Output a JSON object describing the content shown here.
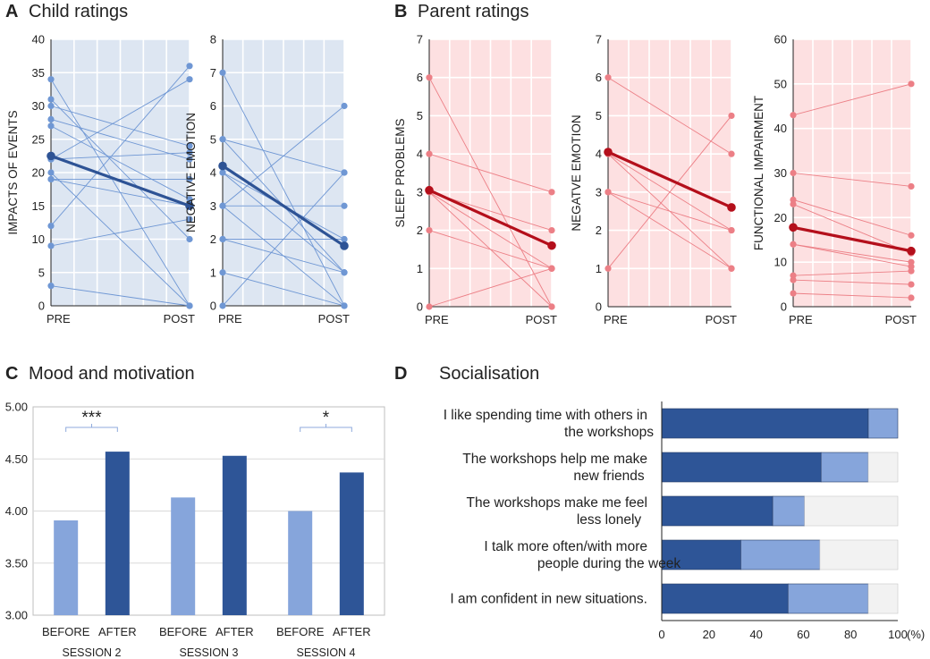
{
  "panels": {
    "A": {
      "letter": "A",
      "title": "Child ratings"
    },
    "B": {
      "letter": "B",
      "title": "Parent ratings"
    },
    "C": {
      "letter": "C",
      "title": "Mood and motivation"
    },
    "D": {
      "letter": "D",
      "title": "Socialisation"
    }
  },
  "colors": {
    "child_bg": "#dde6f2",
    "child_line": "#6f97d4",
    "child_mean": "#2e5395",
    "parent_bg": "#fde0e1",
    "parent_line": "#ec7f86",
    "parent_mean": "#b40f1b",
    "bar_before": "#86a5db",
    "bar_after": "#2e5597",
    "stack_dark": "#2e5597",
    "stack_light": "#86a5db",
    "stack_grey": "#f2f2f2",
    "sig": "#1f3864"
  },
  "chart_data": [
    {
      "id": "impacts",
      "type": "line",
      "panel": "A",
      "theme": "child",
      "ylabel": "IMPACTS OF EVENTS",
      "x": [
        "PRE",
        "POST"
      ],
      "ylim": [
        0,
        40
      ],
      "yticks": [
        0,
        5,
        10,
        15,
        20,
        25,
        30,
        35,
        40
      ],
      "individuals": [
        [
          34,
          0
        ],
        [
          31,
          10
        ],
        [
          30,
          24
        ],
        [
          28,
          22
        ],
        [
          27,
          16
        ],
        [
          22,
          34
        ],
        [
          22,
          23
        ],
        [
          20,
          0
        ],
        [
          19,
          19
        ],
        [
          19,
          15
        ],
        [
          12,
          36
        ],
        [
          9,
          13
        ],
        [
          3,
          0
        ]
      ],
      "mean": [
        22.5,
        15
      ]
    },
    {
      "id": "neg_child",
      "type": "line",
      "panel": "A",
      "theme": "child",
      "ylabel": "NEGATIVE EMOTION",
      "x": [
        "PRE",
        "POST"
      ],
      "ylim": [
        0,
        8
      ],
      "yticks": [
        0,
        1,
        2,
        3,
        4,
        5,
        6,
        7,
        8
      ],
      "individuals": [
        [
          7,
          0
        ],
        [
          5,
          4
        ],
        [
          5,
          1
        ],
        [
          4,
          2
        ],
        [
          4,
          1
        ],
        [
          3,
          6
        ],
        [
          3,
          3
        ],
        [
          3,
          0
        ],
        [
          2,
          2
        ],
        [
          2,
          1
        ],
        [
          1,
          0
        ],
        [
          0,
          4
        ]
      ],
      "mean": [
        4.2,
        1.8
      ]
    },
    {
      "id": "sleep",
      "type": "line",
      "panel": "B",
      "theme": "parent",
      "ylabel": "SLEEP PROBLEMS",
      "x": [
        "PRE",
        "POST"
      ],
      "ylim": [
        0,
        7
      ],
      "yticks": [
        0,
        1,
        2,
        3,
        4,
        5,
        6,
        7
      ],
      "individuals": [
        [
          6,
          0
        ],
        [
          4,
          3
        ],
        [
          3,
          2
        ],
        [
          3,
          1
        ],
        [
          3,
          0
        ],
        [
          2,
          1
        ],
        [
          0,
          1
        ]
      ],
      "mean": [
        3.05,
        1.6
      ]
    },
    {
      "id": "neg_parent",
      "type": "line",
      "panel": "B",
      "theme": "parent",
      "ylabel": "NEGATVE EMOTION",
      "x": [
        "PRE",
        "POST"
      ],
      "ylim": [
        0,
        7
      ],
      "yticks": [
        0,
        1,
        2,
        3,
        4,
        5,
        6,
        7
      ],
      "individuals": [
        [
          6,
          4
        ],
        [
          4,
          1
        ],
        [
          4,
          2
        ],
        [
          3,
          2
        ],
        [
          3,
          1
        ],
        [
          1,
          5
        ]
      ],
      "mean": [
        4.05,
        2.6
      ]
    },
    {
      "id": "functional",
      "type": "line",
      "panel": "B",
      "theme": "parent",
      "ylabel": "FUNCTIONAL IMPAIRMENT",
      "x": [
        "PRE",
        "POST"
      ],
      "ylim": [
        0,
        60
      ],
      "yticks": [
        0,
        10,
        20,
        30,
        40,
        50,
        60
      ],
      "individuals": [
        [
          43,
          50
        ],
        [
          30,
          27
        ],
        [
          24,
          16
        ],
        [
          23,
          12
        ],
        [
          14,
          9
        ],
        [
          14,
          10
        ],
        [
          7,
          8
        ],
        [
          6,
          5
        ],
        [
          3,
          2
        ]
      ],
      "mean": [
        17.8,
        12.5
      ]
    },
    {
      "id": "mood",
      "type": "bar",
      "panel": "C",
      "ylim": [
        3.0,
        5.0
      ],
      "yticks": [
        3.0,
        3.5,
        4.0,
        4.5,
        5.0
      ],
      "ytick_labels": [
        "3.00",
        "3.50",
        "4.00",
        "4.50",
        "5.00"
      ],
      "groups": [
        {
          "name": "SESSION 2",
          "before": 3.91,
          "after": 4.57,
          "sig": "***"
        },
        {
          "name": "SESSION 3",
          "before": 4.13,
          "after": 4.53,
          "sig": ""
        },
        {
          "name": "SESSION 4",
          "before": 4.0,
          "after": 4.37,
          "sig": "*"
        }
      ],
      "bar_labels": [
        "BEFORE",
        "AFTER"
      ]
    },
    {
      "id": "social",
      "type": "bar",
      "panel": "D",
      "orientation": "horizontal",
      "stacked": true,
      "xlim": [
        0,
        100
      ],
      "xticks": [
        0,
        20,
        40,
        60,
        80,
        100
      ],
      "xtick_labels": [
        "0",
        "20",
        "40",
        "60",
        "80",
        "100"
      ],
      "xunit": "(%)",
      "categories": [
        [
          "I like spending time with others in",
          "the workshops"
        ],
        [
          "The workshops help me make",
          "new friends"
        ],
        [
          "The workshops make me feel",
          "less lonely"
        ],
        [
          "I talk more often/with more",
          "people during the week"
        ],
        [
          "I am confident in new situations."
        ]
      ],
      "series": [
        {
          "name": "dark",
          "values": [
            87.5,
            67.5,
            47,
            33.5,
            53.5
          ]
        },
        {
          "name": "light",
          "values": [
            12.5,
            20,
            13.5,
            33.5,
            34
          ]
        },
        {
          "name": "grey",
          "values": [
            0,
            12.5,
            39.5,
            33,
            12.5
          ]
        }
      ]
    }
  ]
}
